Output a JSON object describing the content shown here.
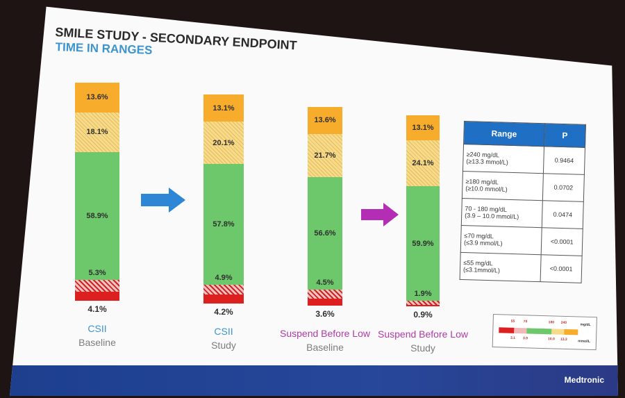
{
  "slide": {
    "title": "SMILE STUDY  -  SECONDARY ENDPOINT",
    "subtitle": "TIME IN RANGES",
    "brand": "Medtronic"
  },
  "colors": {
    "very_high": "#f7ac2c",
    "high": "#f8db8a",
    "target": "#6cc86b",
    "low": "#cc2222",
    "very_low": "#dc1f1f",
    "arrow_blue": "#2e86d6",
    "arrow_purple": "#b32db5"
  },
  "chart_data": {
    "type": "bar",
    "stacked": true,
    "categories": [
      {
        "line1": "CSII",
        "line2": "Baseline"
      },
      {
        "line1": "CSII",
        "line2": "Study"
      },
      {
        "line1": "Suspend Before Low",
        "line2": "Baseline"
      },
      {
        "line1": "Suspend Before Low",
        "line2": "Study"
      }
    ],
    "series": [
      {
        "name": ">240 mg/dL",
        "values": [
          13.6,
          13.1,
          13.6,
          13.1
        ],
        "labels": [
          "13.6%",
          "13.1%",
          "13.6%",
          "13.1%"
        ]
      },
      {
        "name": "180-240 mg/dL",
        "values": [
          18.1,
          20.1,
          21.7,
          24.1
        ],
        "labels": [
          "18.1%",
          "20.1%",
          "21.7%",
          "24.1%"
        ]
      },
      {
        "name": "70-180 mg/dL",
        "values": [
          58.9,
          57.8,
          56.6,
          59.9
        ],
        "labels": [
          "58.9%",
          "57.8%",
          "56.6%",
          "59.9%"
        ]
      },
      {
        "name": "55-70 mg/dL",
        "values": [
          5.3,
          4.9,
          4.5,
          1.9
        ],
        "labels": [
          "5.3%",
          "4.9%",
          "4.5%",
          "1.9%"
        ]
      },
      {
        "name": "<55 mg/dL",
        "values": [
          4.1,
          4.2,
          3.6,
          0.9
        ],
        "labels": [
          "4.1%",
          "4.2%",
          "3.6%",
          "0.9%"
        ]
      }
    ]
  },
  "table": {
    "headers": [
      "Range",
      "P"
    ],
    "rows": [
      {
        "range": [
          "≥240 mg/dL",
          "(≥13.3 mmol/L)"
        ],
        "p": "0.9464"
      },
      {
        "range": [
          "≥180 mg/dL",
          "(≥10.0 mmol/L)"
        ],
        "p": "0.0702"
      },
      {
        "range": [
          "70 - 180 mg/dL",
          "(3.9 – 10.0 mmol/L)"
        ],
        "p": "0.0474"
      },
      {
        "range": [
          "≤70 mg/dL",
          "(≤3.9 mmol/L)"
        ],
        "p": "<0.0001"
      },
      {
        "range": [
          "≤55 mg/dL",
          "(≤3.1mmol/L)"
        ],
        "p": "<0.0001"
      }
    ]
  },
  "legend": {
    "top_values": [
      "55",
      "70",
      "180",
      "240"
    ],
    "top_unit": "mg/dL",
    "bottom_values": [
      "3.1",
      "3.9",
      "10.0",
      "13.3"
    ],
    "bottom_unit": "mmol/L"
  }
}
